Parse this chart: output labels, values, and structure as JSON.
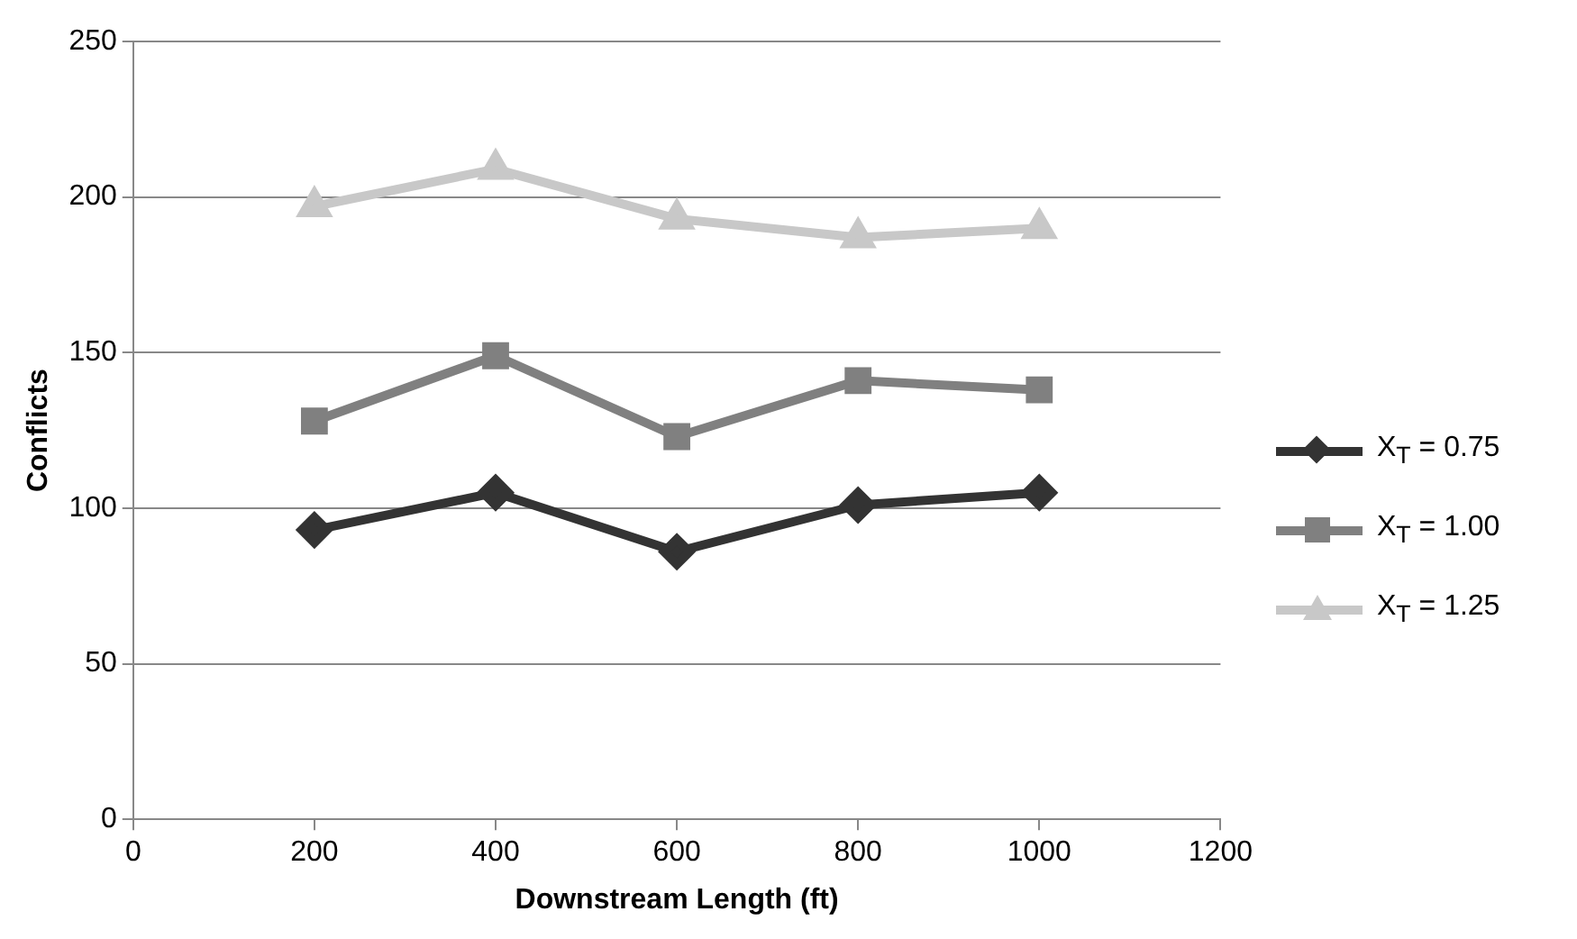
{
  "chart_data": {
    "type": "line",
    "xlabel": "Downstream Length (ft)",
    "ylabel": "Conflicts",
    "x": [
      200,
      400,
      600,
      800,
      1000
    ],
    "xlim": [
      0,
      1200
    ],
    "xticks": [
      0,
      200,
      400,
      600,
      800,
      1000,
      1200
    ],
    "ylim": [
      0,
      250
    ],
    "yticks": [
      0,
      50,
      100,
      150,
      200,
      250
    ],
    "grid": "y",
    "legend": "right",
    "line_style": "solid",
    "series": [
      {
        "name": "X$_{T}$ = 0.75",
        "color": "#333333",
        "marker": "diamond",
        "values": [
          93,
          105,
          86,
          101,
          105
        ]
      },
      {
        "name": "X$_{T}$ = 1.00",
        "color": "#808080",
        "marker": "square",
        "values": [
          128,
          149,
          123,
          141,
          138
        ]
      },
      {
        "name": "X$_{T}$ = 1.25",
        "color": "#c8c8c8",
        "marker": "triangle",
        "values": [
          197,
          209,
          193,
          187,
          190
        ]
      }
    ]
  }
}
